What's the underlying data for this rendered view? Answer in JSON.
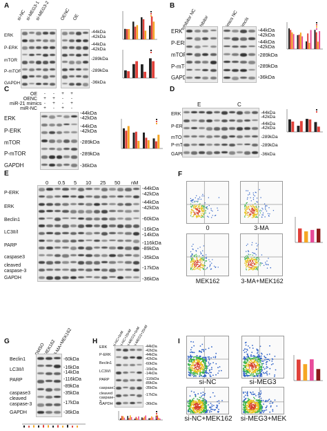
{
  "panels": {
    "A": {
      "letter": "A",
      "lanes": [
        "si-NC",
        "si-MEG3-1",
        "si-MEG3-2",
        "OENC",
        "OE"
      ],
      "rows": [
        "ERK",
        "P-ERK",
        "mTOR",
        "P-mTOR",
        "GAPDH"
      ],
      "kda": [
        "-44kDa",
        "-42kDa",
        "-44kDa",
        "-42kDa",
        "-289kDa",
        "-289kDa",
        "-36kDa"
      ]
    },
    "B": {
      "letter": "B",
      "lanes": [
        "Inhibitor NC",
        "Inhibitor",
        "Mimics NC",
        "Mimcis"
      ],
      "rows": [
        "ERK",
        "P-ERK",
        "mTOR",
        "P-mTOR",
        "GAPDH"
      ],
      "kda": [
        "-44kDa",
        "-42kDa",
        "-44kDa",
        "-42kDa",
        "-289kDa",
        "-289kDa",
        "-36kDa"
      ]
    },
    "C": {
      "letter": "C",
      "treatments": [
        "OE",
        "OENC",
        "miR-21 mimics",
        "miR-NC"
      ],
      "signs": [
        [
          "-",
          "-",
          "+",
          "+"
        ],
        [
          "+",
          "+",
          "-",
          "-"
        ],
        [
          "-",
          "+",
          "-",
          "+"
        ],
        [
          "+",
          "-",
          "+",
          "-"
        ]
      ],
      "rows": [
        "ERK",
        "P-ERK",
        "mTOR",
        "P-mTOR",
        "GAPDH"
      ],
      "kda": [
        "-44kDa",
        "-42kDa",
        "-44kDa",
        "-42kDa",
        "-289kDa",
        "-289kDa",
        "-36kDa"
      ]
    },
    "D": {
      "letter": "D",
      "groups": [
        "E",
        "C"
      ],
      "rows": [
        "ERK",
        "P-ERK",
        "mTOR",
        "P-mTOR",
        "GAPDH"
      ],
      "kda": [
        "-44kDa",
        "-42kDa",
        "-44kDa",
        "-42kDa",
        "-289kDa",
        "-289kDa",
        "-36kDa"
      ]
    },
    "E": {
      "letter": "E",
      "doses": [
        "0",
        "0.5",
        "5",
        "10",
        "25",
        "50"
      ],
      "unit": "nM",
      "rows": [
        "P-ERK",
        "ERK",
        "Beclin1",
        "LC3II/I",
        "PARP",
        "caspase3",
        "cleaved caspase-3",
        "GAPDH"
      ],
      "kda": [
        "-44kDa",
        "-42kDa",
        "-44kDa",
        "-42kDa",
        "-60kDa",
        "-16kDa",
        "-14kDa",
        "-116kDa",
        "-89kDa",
        "-35kDa",
        "-17kDa",
        "-36kDa"
      ]
    },
    "F": {
      "letter": "F",
      "captions": [
        "0",
        "3-MA",
        "MEK162",
        "3-MA+MEK162"
      ]
    },
    "G": {
      "letter": "G",
      "lanes": [
        "DMSO",
        "MEK162",
        "3-MA+MEK162"
      ],
      "rows": [
        "Beclin1",
        "LC3II/I",
        "PARP",
        "caspase3",
        "cleaved caspase-3",
        "GAPDH"
      ],
      "kda": [
        "-60kDa",
        "-16kDa",
        "-14kDa",
        "-116kDa",
        "-89kDa",
        "-35kDa",
        "-17kDa",
        "-36kDa"
      ]
    },
    "H": {
      "letter": "H",
      "lanes": [
        "si-NC+0nM",
        "si-NC+25nM",
        "si-MEG3+0nM",
        "si-MEG3+25nM"
      ],
      "rows": [
        "ERK",
        "P-ERK",
        "Beclin1",
        "LC3II/I",
        "PARP",
        "caspase3",
        "cleaved caspase-3",
        "GAPDH"
      ],
      "kda": [
        "-44kDa",
        "-42kDa",
        "-44kDa",
        "-42kDa",
        "-60kDa",
        "-16kDa",
        "-14kDa",
        "-116kDa",
        "-89kDa",
        "-35kDa",
        "-17kDa",
        "-36kDa"
      ]
    },
    "I": {
      "letter": "I",
      "captions": [
        "si-NC",
        "si-MEG3",
        "si-NC+MEK162",
        "si-MEG3+MEK"
      ]
    }
  },
  "colors": {
    "series": [
      "#222222",
      "#e0413a",
      "#f5a623",
      "#e84b9a",
      "#8b1a1a"
    ]
  }
}
